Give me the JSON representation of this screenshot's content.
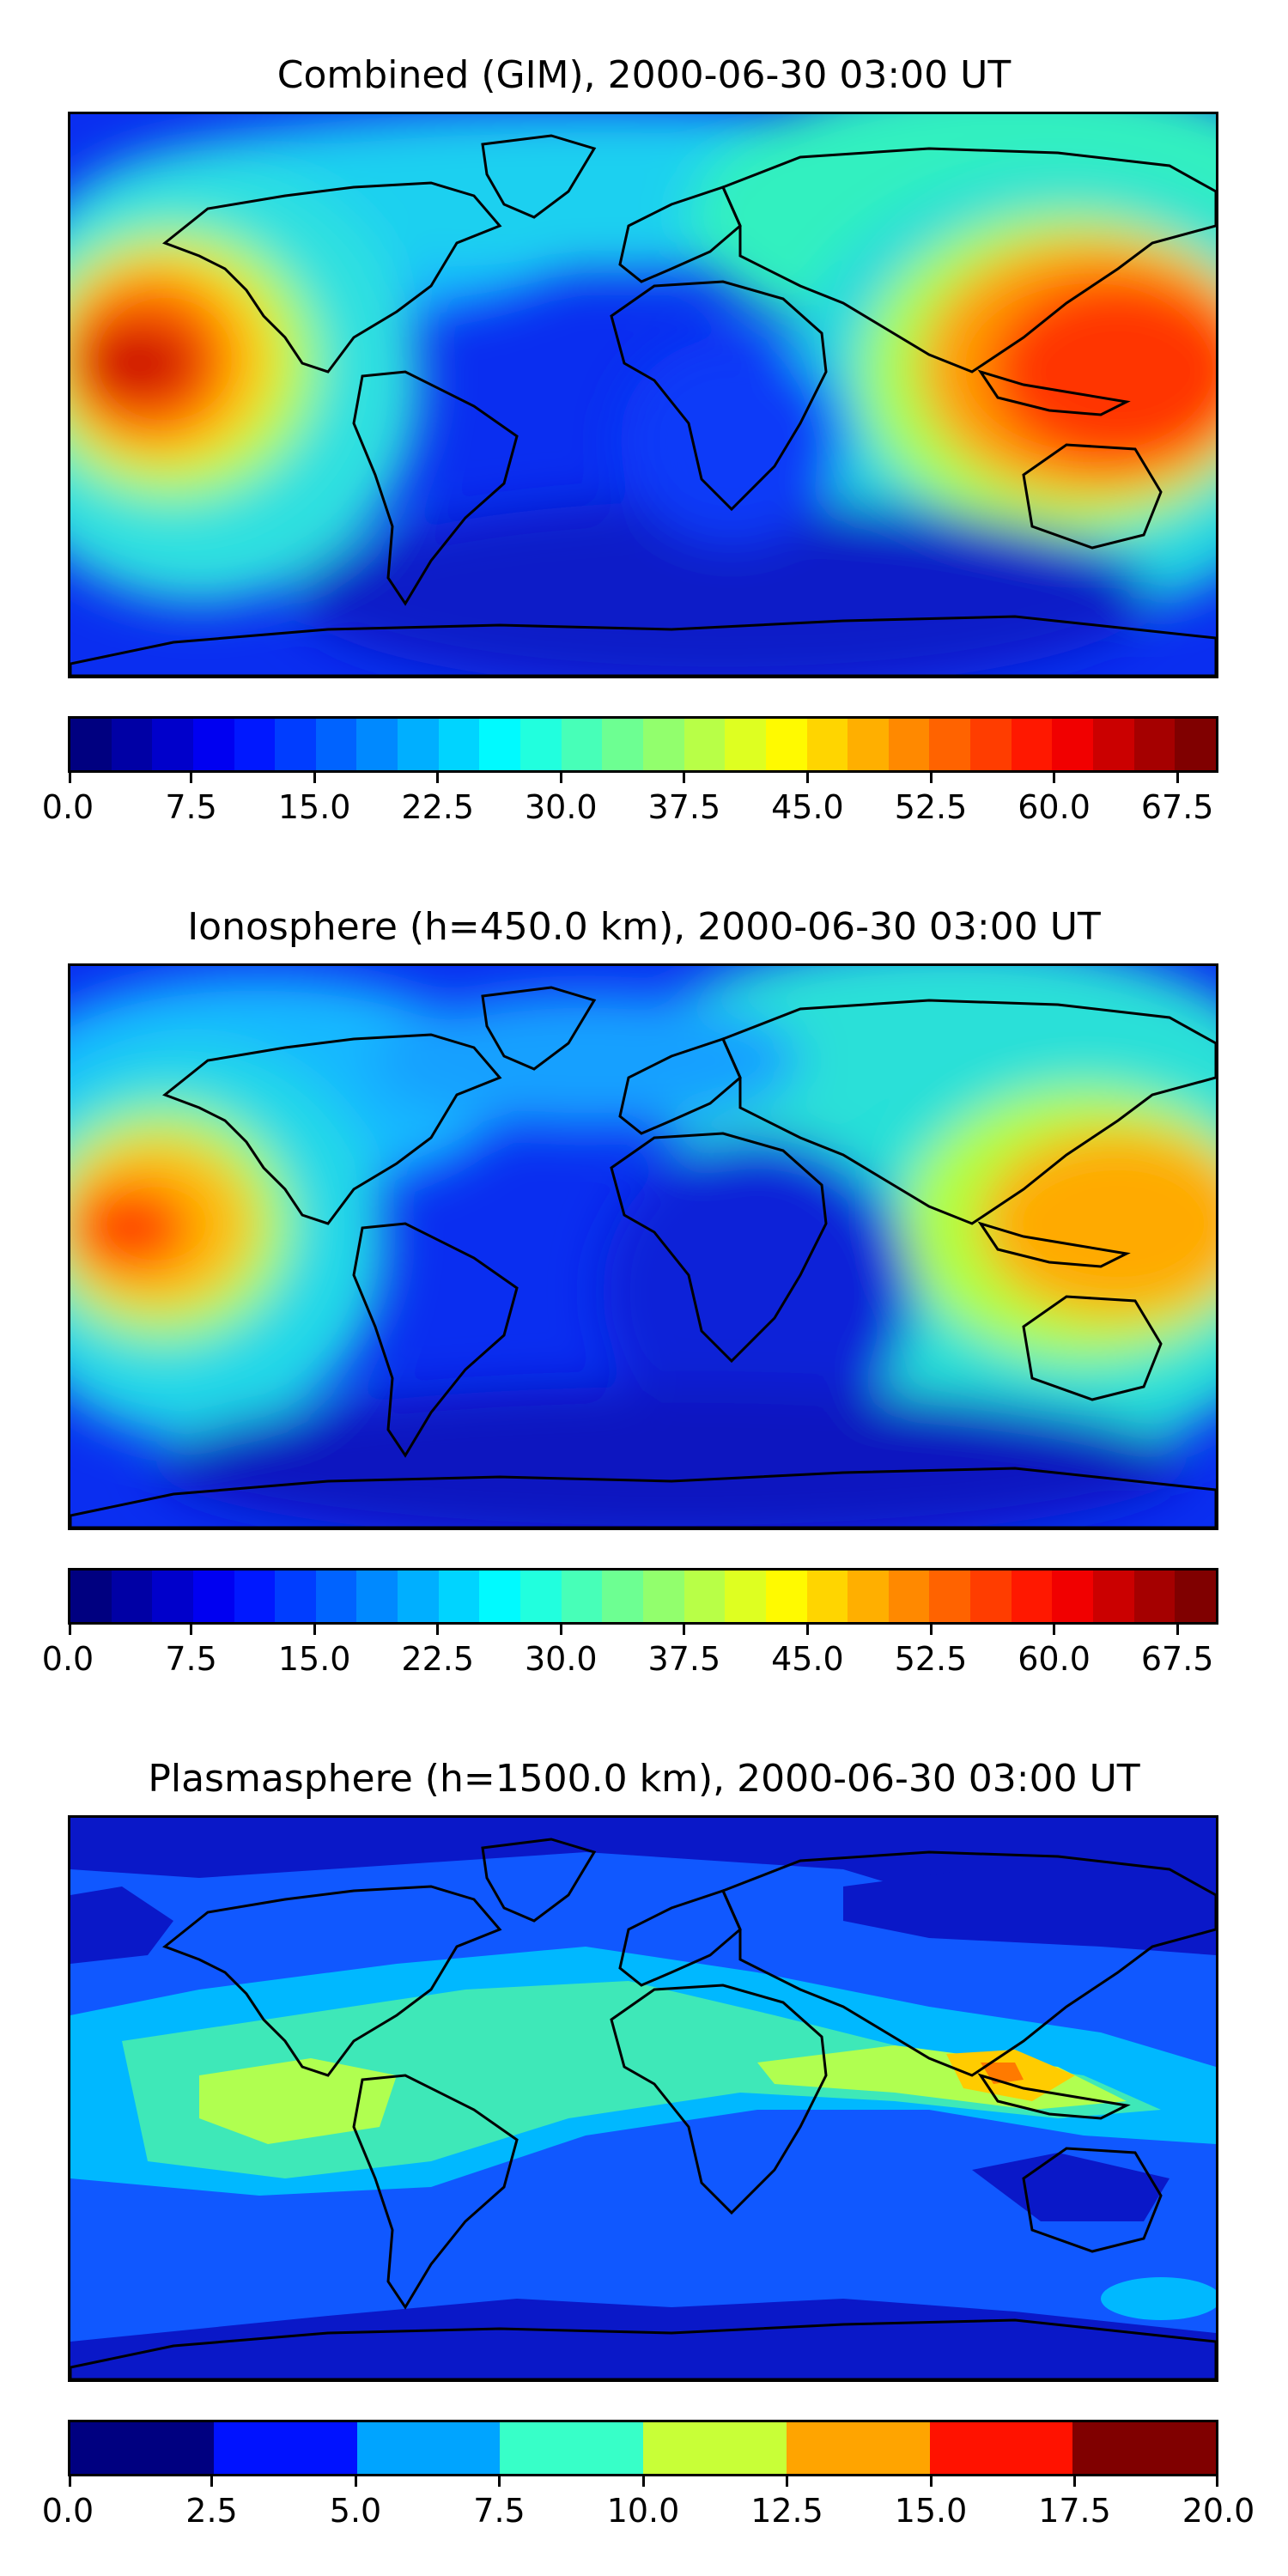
{
  "panels": [
    {
      "title": "Combined (GIM), 2000-06-30 03:00 UT",
      "colorbar": {
        "min": 0.0,
        "max": 70.0,
        "step": 2.5,
        "tick_labels": [
          "0.0",
          "7.5",
          "15.0",
          "22.5",
          "30.0",
          "37.5",
          "45.0",
          "52.5",
          "60.0",
          "67.5"
        ],
        "tick_values": [
          0.0,
          7.5,
          15.0,
          22.5,
          30.0,
          37.5,
          45.0,
          52.5,
          60.0,
          67.5
        ]
      }
    },
    {
      "title": "Ionosphere  (h=450.0 km), 2000-06-30 03:00 UT",
      "colorbar": {
        "min": 0.0,
        "max": 70.0,
        "step": 2.5,
        "tick_labels": [
          "0.0",
          "7.5",
          "15.0",
          "22.5",
          "30.0",
          "37.5",
          "45.0",
          "52.5",
          "60.0",
          "67.5"
        ],
        "tick_values": [
          0.0,
          7.5,
          15.0,
          22.5,
          30.0,
          37.5,
          45.0,
          52.5,
          60.0,
          67.5
        ]
      }
    },
    {
      "title": "Plasmasphere (h=1500.0 km), 2000-06-30 03:00 UT",
      "colorbar": {
        "min": 0.0,
        "max": 20.0,
        "step": 2.5,
        "tick_labels": [
          "0.0",
          "2.5",
          "5.0",
          "7.5",
          "10.0",
          "12.5",
          "15.0",
          "17.5",
          "20.0"
        ],
        "tick_values": [
          0.0,
          2.5,
          5.0,
          7.5,
          10.0,
          12.5,
          15.0,
          17.5,
          20.0
        ]
      }
    }
  ],
  "colormap": "jet"
}
